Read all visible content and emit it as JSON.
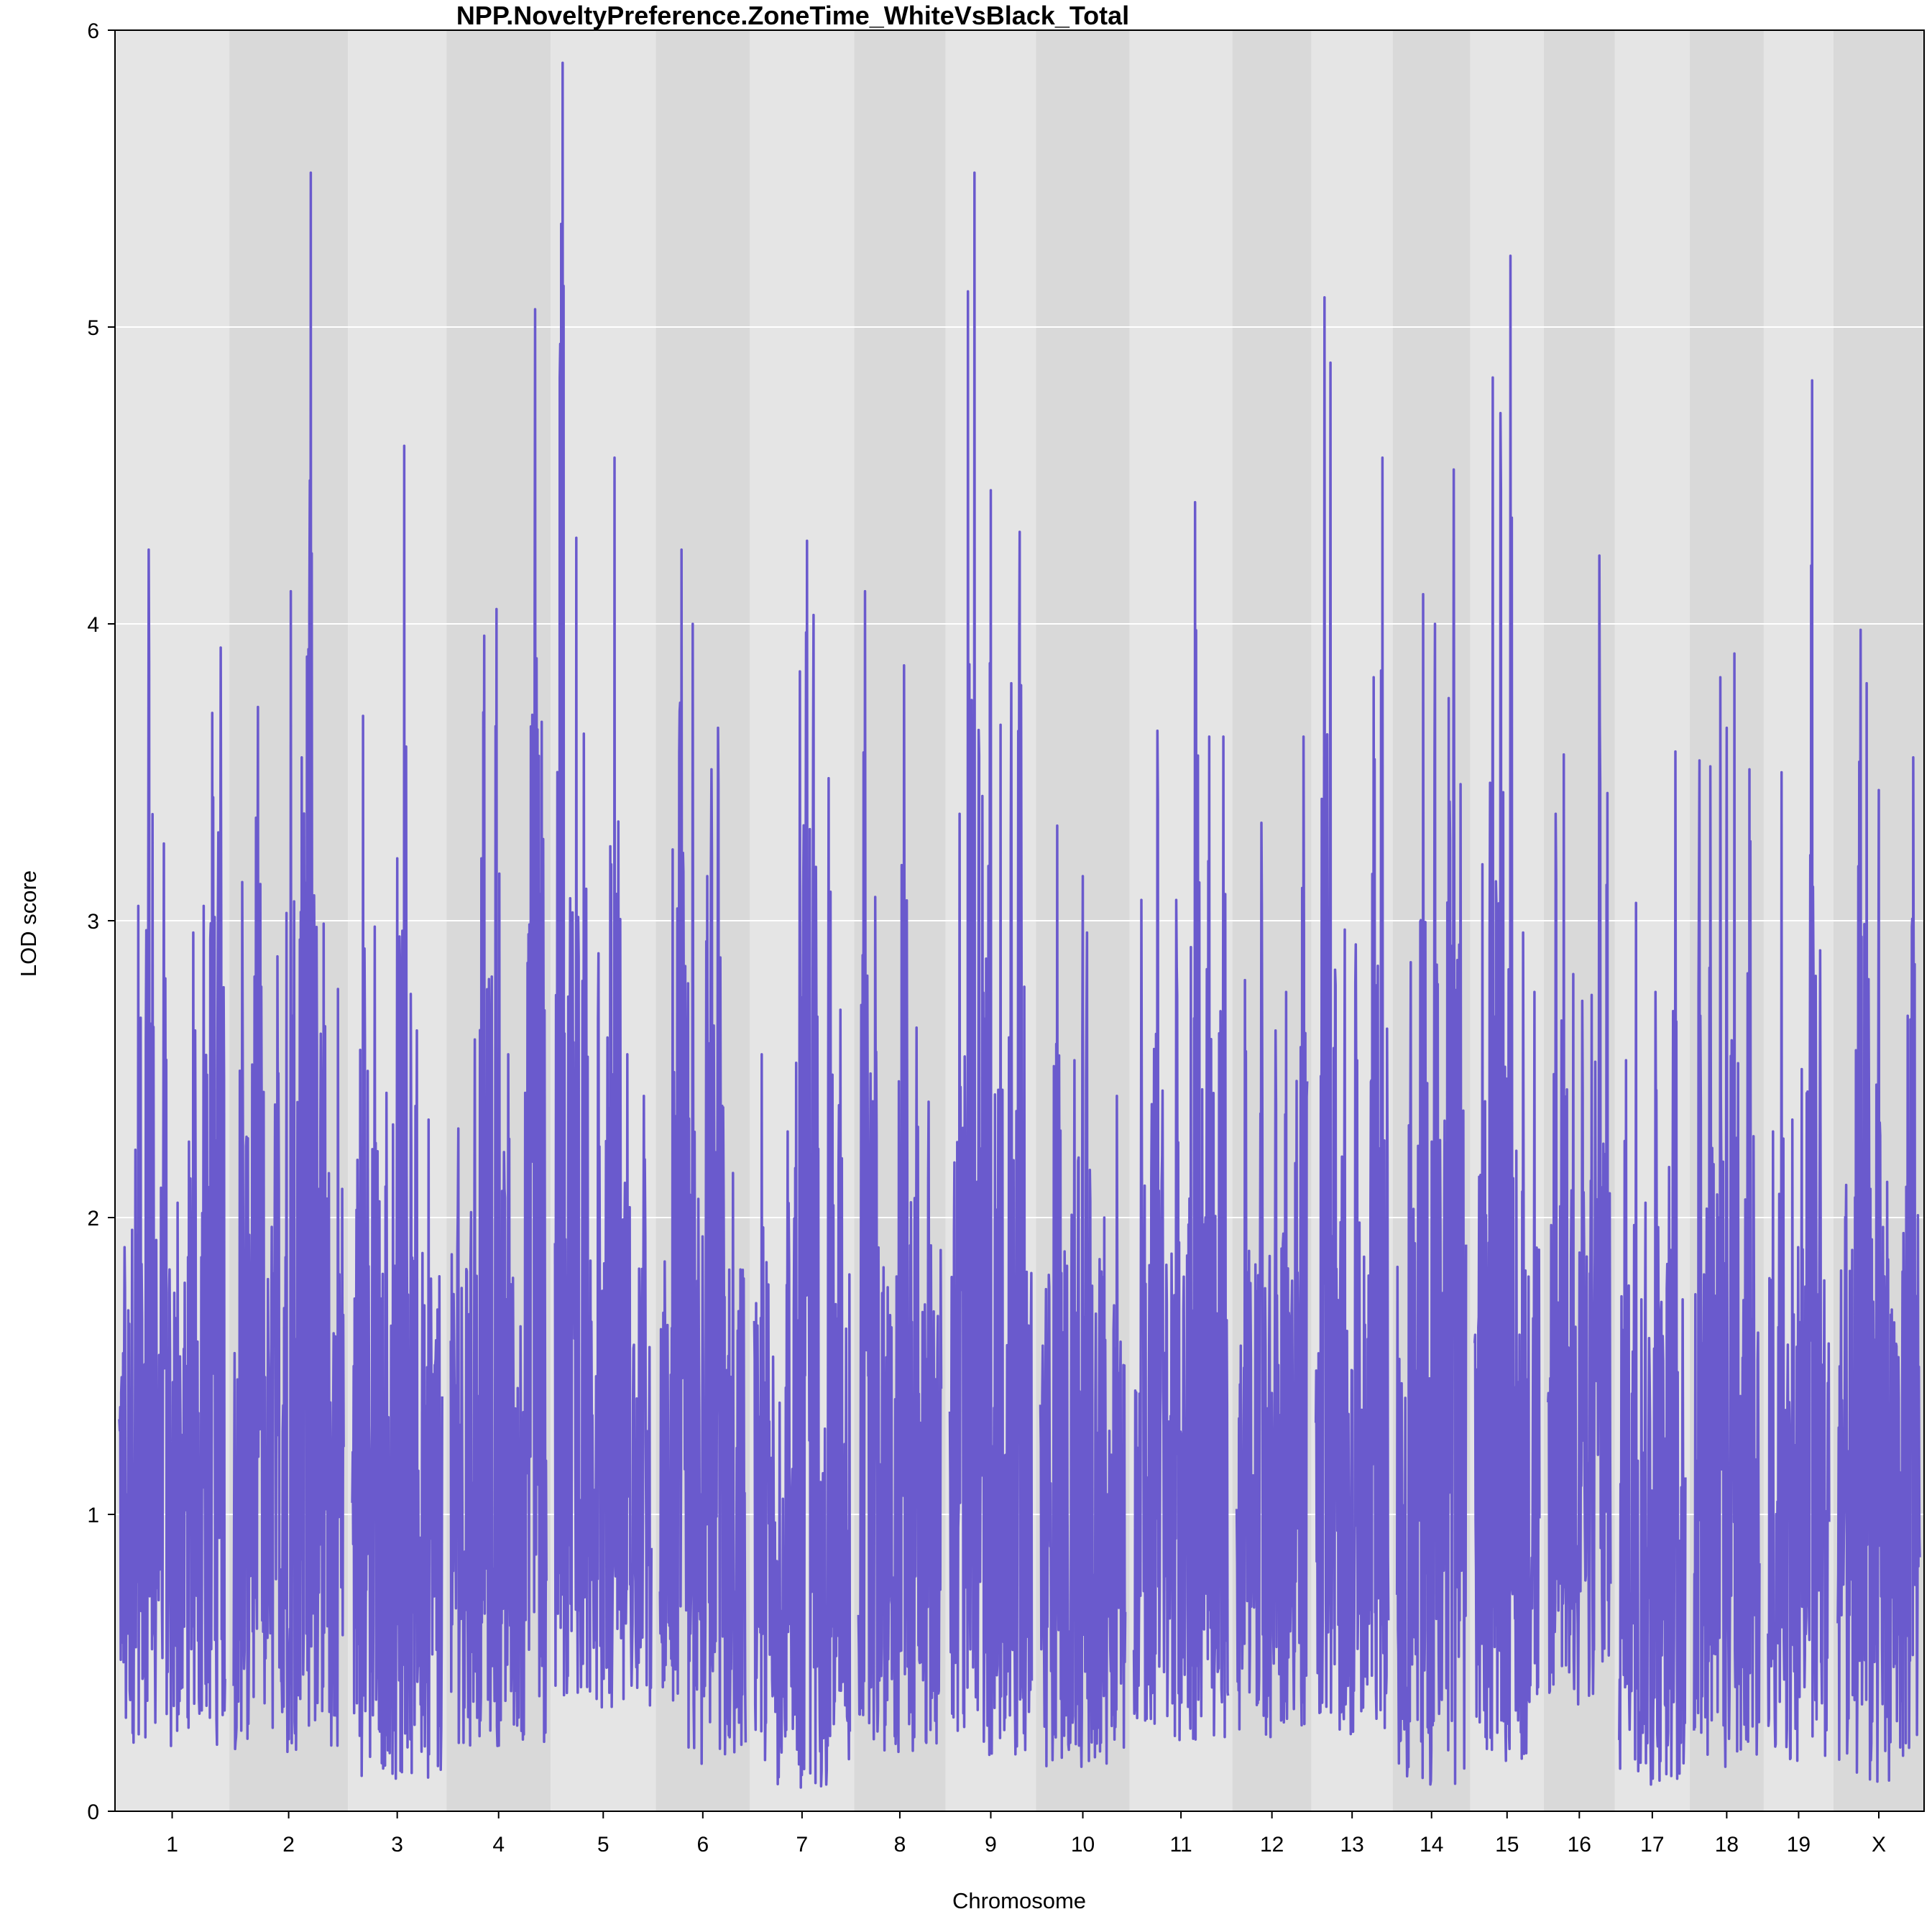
{
  "chart_data": {
    "type": "line",
    "title": "NPP.NoveltyPreference.ZoneTime_WhiteVsBlack_Total",
    "xlabel": "Chromosome",
    "ylabel": "LOD score",
    "ylim": [
      0,
      6
    ],
    "yticks": [
      0,
      1,
      2,
      3,
      4,
      5,
      6
    ],
    "grid": true,
    "line_color": "#6A5ACD",
    "band_colors": [
      "#E5E5E5",
      "#D9D9D9"
    ],
    "chromosomes": [
      {
        "label": "1",
        "peaks": [
          [
            0.05,
            1.9
          ],
          [
            0.18,
            3.05
          ],
          [
            0.28,
            4.25
          ],
          [
            0.42,
            3.26
          ],
          [
            0.55,
            2.05
          ],
          [
            0.7,
            2.96
          ],
          [
            0.8,
            3.05
          ],
          [
            0.88,
            3.7
          ],
          [
            0.96,
            3.92
          ]
        ],
        "min": 0.22
      },
      {
        "label": "2",
        "peaks": [
          [
            0.08,
            3.13
          ],
          [
            0.22,
            3.72
          ],
          [
            0.4,
            2.88
          ],
          [
            0.52,
            4.11
          ],
          [
            0.62,
            3.55
          ],
          [
            0.7,
            5.52
          ],
          [
            0.82,
            2.99
          ],
          [
            0.95,
            2.77
          ]
        ],
        "min": 0.2
      },
      {
        "label": "3",
        "peaks": [
          [
            0.12,
            3.69
          ],
          [
            0.25,
            2.98
          ],
          [
            0.38,
            2.42
          ],
          [
            0.5,
            3.21
          ],
          [
            0.58,
            4.6
          ],
          [
            0.72,
            2.63
          ],
          [
            0.85,
            2.33
          ],
          [
            0.95,
            1.69
          ]
        ],
        "min": 0.11
      },
      {
        "label": "4",
        "peaks": [
          [
            0.08,
            2.3
          ],
          [
            0.25,
            2.6
          ],
          [
            0.35,
            3.96
          ],
          [
            0.48,
            4.05
          ],
          [
            0.6,
            2.55
          ],
          [
            0.78,
            2.42
          ],
          [
            0.88,
            5.06
          ],
          [
            0.95,
            3.67
          ]
        ],
        "min": 0.22
      },
      {
        "label": "5",
        "peaks": [
          [
            0.08,
            5.89
          ],
          [
            0.22,
            4.29
          ],
          [
            0.3,
            3.63
          ],
          [
            0.45,
            2.89
          ],
          [
            0.62,
            4.56
          ],
          [
            0.75,
            2.55
          ],
          [
            0.92,
            2.41
          ]
        ],
        "min": 0.35
      },
      {
        "label": "6",
        "peaks": [
          [
            0.15,
            3.24
          ],
          [
            0.25,
            4.25
          ],
          [
            0.38,
            4.0
          ],
          [
            0.55,
            3.15
          ],
          [
            0.6,
            3.51
          ],
          [
            0.68,
            3.65
          ],
          [
            0.85,
            2.15
          ]
        ],
        "min": 0.16
      },
      {
        "label": "7",
        "peaks": [
          [
            0.08,
            2.55
          ],
          [
            0.35,
            2.29
          ],
          [
            0.48,
            3.84
          ],
          [
            0.55,
            4.28
          ],
          [
            0.62,
            4.03
          ],
          [
            0.78,
            3.48
          ],
          [
            0.9,
            2.7
          ]
        ],
        "min": 0.08
      },
      {
        "label": "8",
        "peaks": [
          [
            0.08,
            4.11
          ],
          [
            0.2,
            3.08
          ],
          [
            0.4,
            1.63
          ],
          [
            0.55,
            3.86
          ],
          [
            0.7,
            2.64
          ],
          [
            0.85,
            2.39
          ]
        ],
        "min": 0.2
      },
      {
        "label": "9",
        "peaks": [
          [
            0.12,
            3.36
          ],
          [
            0.22,
            5.12
          ],
          [
            0.3,
            5.52
          ],
          [
            0.4,
            3.42
          ],
          [
            0.5,
            4.45
          ],
          [
            0.62,
            3.66
          ],
          [
            0.75,
            3.8
          ],
          [
            0.85,
            4.31
          ]
        ],
        "min": 0.19
      },
      {
        "label": "10",
        "peaks": [
          [
            0.2,
            3.32
          ],
          [
            0.4,
            2.53
          ],
          [
            0.5,
            3.15
          ],
          [
            0.55,
            2.96
          ],
          [
            0.75,
            2.0
          ],
          [
            0.9,
            2.41
          ]
        ],
        "min": 0.15
      },
      {
        "label": "11",
        "peaks": [
          [
            0.08,
            3.07
          ],
          [
            0.25,
            3.64
          ],
          [
            0.45,
            3.07
          ],
          [
            0.65,
            4.41
          ],
          [
            0.8,
            3.62
          ],
          [
            0.95,
            3.62
          ]
        ],
        "min": 0.24
      },
      {
        "label": "12",
        "peaks": [
          [
            0.12,
            2.8
          ],
          [
            0.35,
            3.33
          ],
          [
            0.55,
            2.63
          ],
          [
            0.7,
            2.76
          ],
          [
            0.85,
            2.46
          ],
          [
            0.95,
            3.62
          ]
        ],
        "min": 0.25
      },
      {
        "label": "13",
        "peaks": [
          [
            0.12,
            5.1
          ],
          [
            0.2,
            4.88
          ],
          [
            0.4,
            2.97
          ],
          [
            0.55,
            2.92
          ],
          [
            0.8,
            3.82
          ],
          [
            0.92,
            4.56
          ]
        ],
        "min": 0.26
      },
      {
        "label": "14",
        "peaks": [
          [
            0.2,
            2.86
          ],
          [
            0.38,
            4.1
          ],
          [
            0.55,
            4.0
          ],
          [
            0.75,
            3.75
          ],
          [
            0.82,
            4.52
          ],
          [
            0.92,
            3.46
          ]
        ],
        "min": 0.09
      },
      {
        "label": "15",
        "peaks": [
          [
            0.12,
            3.19
          ],
          [
            0.28,
            4.83
          ],
          [
            0.4,
            4.71
          ],
          [
            0.55,
            5.24
          ],
          [
            0.75,
            2.96
          ],
          [
            0.92,
            2.76
          ]
        ],
        "min": 0.17
      },
      {
        "label": "16",
        "peaks": [
          [
            0.12,
            3.36
          ],
          [
            0.25,
            3.56
          ],
          [
            0.4,
            2.82
          ],
          [
            0.55,
            2.73
          ],
          [
            0.7,
            2.75
          ],
          [
            0.82,
            4.23
          ],
          [
            0.95,
            3.43
          ]
        ],
        "min": 0.36
      },
      {
        "label": "17",
        "peaks": [
          [
            0.1,
            2.53
          ],
          [
            0.25,
            3.06
          ],
          [
            0.4,
            2.05
          ],
          [
            0.55,
            2.76
          ],
          [
            0.75,
            2.17
          ],
          [
            0.85,
            3.57
          ]
        ],
        "min": 0.09
      },
      {
        "label": "18",
        "peaks": [
          [
            0.08,
            3.54
          ],
          [
            0.25,
            3.52
          ],
          [
            0.4,
            3.82
          ],
          [
            0.5,
            3.65
          ],
          [
            0.62,
            3.9
          ],
          [
            0.85,
            3.51
          ]
        ],
        "min": 0.15
      },
      {
        "label": "19",
        "peaks": [
          [
            0.08,
            2.29
          ],
          [
            0.22,
            3.5
          ],
          [
            0.4,
            2.33
          ],
          [
            0.55,
            2.5
          ],
          [
            0.72,
            4.82
          ],
          [
            0.85,
            2.9
          ]
        ],
        "min": 0.17
      },
      {
        "label": "X",
        "peaks": [
          [
            0.1,
            2.11
          ],
          [
            0.28,
            3.98
          ],
          [
            0.35,
            3.8
          ],
          [
            0.5,
            3.44
          ],
          [
            0.6,
            2.12
          ],
          [
            0.85,
            2.68
          ],
          [
            0.92,
            3.55
          ]
        ],
        "min": 0.1
      }
    ]
  }
}
